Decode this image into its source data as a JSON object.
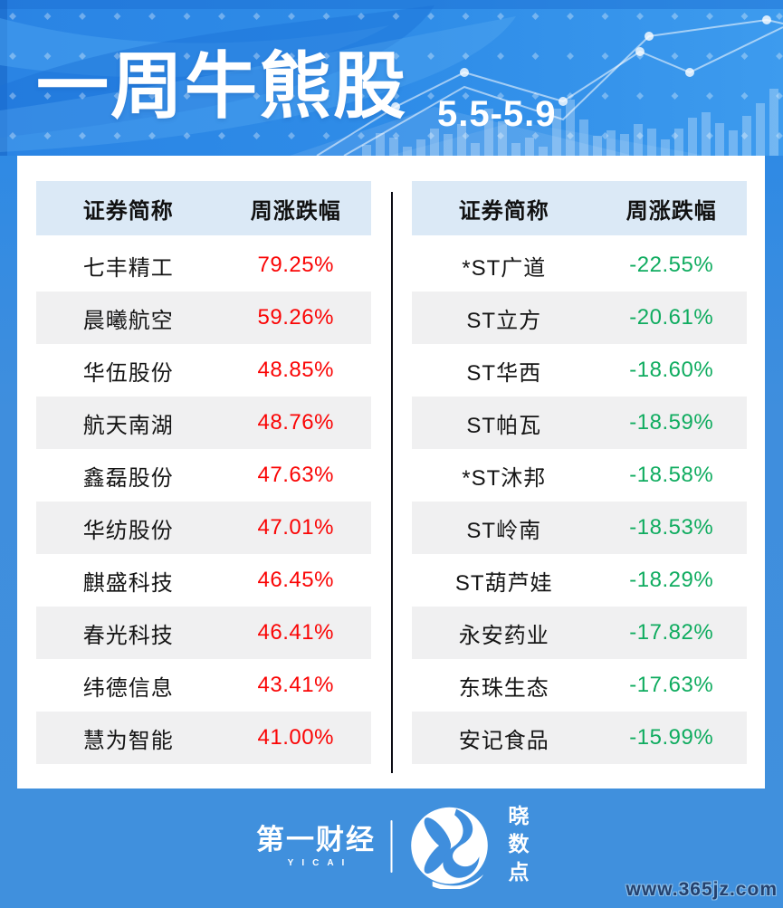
{
  "header": {
    "title": "一周牛熊股",
    "date_range": "5.5-5.9"
  },
  "tables": {
    "gainers": {
      "col_name_header": "证券简称",
      "col_change_header": "周涨跌幅",
      "rows": [
        {
          "name": "七丰精工",
          "change": "79.25%"
        },
        {
          "name": "晨曦航空",
          "change": "59.26%"
        },
        {
          "name": "华伍股份",
          "change": "48.85%"
        },
        {
          "name": "航天南湖",
          "change": "48.76%"
        },
        {
          "name": "鑫磊股份",
          "change": "47.63%"
        },
        {
          "name": "华纺股份",
          "change": "47.01%"
        },
        {
          "name": "麒盛科技",
          "change": "46.45%"
        },
        {
          "name": "春光科技",
          "change": "46.41%"
        },
        {
          "name": "纬德信息",
          "change": "43.41%"
        },
        {
          "name": "慧为智能",
          "change": "41.00%"
        }
      ]
    },
    "losers": {
      "col_name_header": "证券简称",
      "col_change_header": "周涨跌幅",
      "rows": [
        {
          "name": "*ST广道",
          "change": "-22.55%"
        },
        {
          "name": "ST立方",
          "change": "-20.61%"
        },
        {
          "name": "ST华西",
          "change": "-18.60%"
        },
        {
          "name": "ST帕瓦",
          "change": "-18.59%"
        },
        {
          "name": "*ST沐邦",
          "change": "-18.58%"
        },
        {
          "name": "ST岭南",
          "change": "-18.53%"
        },
        {
          "name": "ST葫芦娃",
          "change": "-18.29%"
        },
        {
          "name": "永安药业",
          "change": "-17.82%"
        },
        {
          "name": "东珠生态",
          "change": "-17.63%"
        },
        {
          "name": "安记食品",
          "change": "-15.99%"
        }
      ]
    }
  },
  "footer": {
    "yicai_name": "第一财经",
    "yicai_sub": "YICAI",
    "partner_name": "晓数点",
    "watermark": "www.365jz.com"
  },
  "colors": {
    "gain_red": "#fa0505",
    "loss_green": "#10ac60",
    "header_blue": "#2e89e6",
    "footer_blue": "#3f8edd",
    "table_header_bg": "#dbe9f6",
    "alt_row_bg": "#f0f0f1"
  },
  "chart_data": [
    {
      "type": "table",
      "panel": "weekly-top-gainers",
      "columns": [
        "证券简称",
        "周涨跌幅"
      ],
      "rows": [
        [
          "七丰精工",
          "79.25%"
        ],
        [
          "晨曦航空",
          "59.26%"
        ],
        [
          "华伍股份",
          "48.85%"
        ],
        [
          "航天南湖",
          "48.76%"
        ],
        [
          "鑫磊股份",
          "47.63%"
        ],
        [
          "华纺股份",
          "47.01%"
        ],
        [
          "麒盛科技",
          "46.45%"
        ],
        [
          "春光科技",
          "46.41%"
        ],
        [
          "纬德信息",
          "43.41%"
        ],
        [
          "慧为智能",
          "41.00%"
        ]
      ],
      "title": "一周牛熊股 5.5-5.9",
      "value_color": "#fa0505"
    },
    {
      "type": "table",
      "panel": "weekly-top-losers",
      "columns": [
        "证券简称",
        "周涨跌幅"
      ],
      "rows": [
        [
          "*ST广道",
          "-22.55%"
        ],
        [
          "ST立方",
          "-20.61%"
        ],
        [
          "ST华西",
          "-18.60%"
        ],
        [
          "ST帕瓦",
          "-18.59%"
        ],
        [
          "*ST沐邦",
          "-18.58%"
        ],
        [
          "ST岭南",
          "-18.53%"
        ],
        [
          "ST葫芦娃",
          "-18.29%"
        ],
        [
          "永安药业",
          "-17.82%"
        ],
        [
          "东珠生态",
          "-17.63%"
        ],
        [
          "安记食品",
          "-15.99%"
        ]
      ],
      "title": "一周牛熊股 5.5-5.9",
      "value_color": "#10ac60"
    }
  ]
}
